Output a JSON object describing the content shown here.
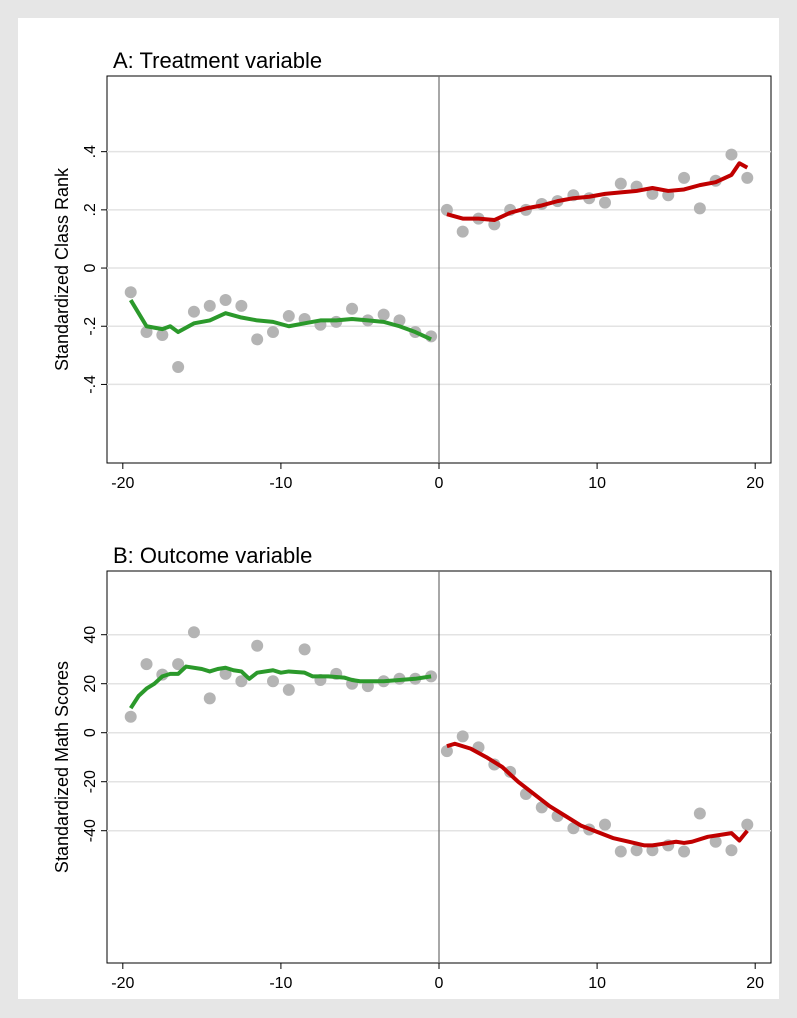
{
  "chart_data": [
    {
      "type": "scatter",
      "title": "A: Treatment variable",
      "ylabel": "Standardized Class Rank",
      "xlim": [
        -21,
        21
      ],
      "xticks": [
        -20,
        -10,
        0,
        10,
        20
      ],
      "ylim": [
        -0.67,
        0.66
      ],
      "yticks": [
        {
          "value": -0.4,
          "label": "-.4"
        },
        {
          "value": -0.2,
          "label": "-.2"
        },
        0,
        {
          "value": 0.2,
          "label": ".2"
        },
        {
          "value": 0.4,
          "label": ".4"
        }
      ],
      "grid": true,
      "xline": 0,
      "series": [
        {
          "type": "scatter",
          "color": "#b4b4b4",
          "x": [
            -19.5,
            -18.5,
            -17.5,
            -16.5,
            -15.5,
            -14.5,
            -13.5,
            -12.5,
            -11.5,
            -10.5,
            -9.5,
            -8.5,
            -7.5,
            -6.5,
            -5.5,
            -4.5,
            -3.5,
            -2.5,
            -1.5,
            -0.5,
            0.5,
            1.5,
            2.5,
            3.5,
            4.5,
            5.5,
            6.5,
            7.5,
            8.5,
            9.5,
            10.5,
            11.5,
            12.5,
            13.5,
            14.5,
            15.5,
            16.5,
            17.5,
            18.5,
            19.5
          ],
          "values": [
            -0.083,
            -0.22,
            -0.23,
            -0.34,
            -0.15,
            -0.13,
            -0.11,
            -0.13,
            -0.245,
            -0.22,
            -0.165,
            -0.175,
            -0.195,
            -0.185,
            -0.14,
            -0.18,
            -0.16,
            -0.18,
            -0.22,
            -0.235,
            0.2,
            0.125,
            0.17,
            0.15,
            0.2,
            0.2,
            0.22,
            0.23,
            0.25,
            0.24,
            0.225,
            0.29,
            0.28,
            0.255,
            0.25,
            0.31,
            0.205,
            0.3,
            0.39,
            0.31
          ]
        },
        {
          "type": "line",
          "color": "#2b992b",
          "x": [
            -19.5,
            -18.5,
            -17.5,
            -17,
            -16.5,
            -15.5,
            -14.5,
            -13.5,
            -12.5,
            -11.5,
            -10.5,
            -9.5,
            -8.5,
            -7.5,
            -6.5,
            -5.5,
            -4.5,
            -3.5,
            -2.5,
            -1.5,
            -0.5
          ],
          "values": [
            -0.11,
            -0.2,
            -0.21,
            -0.2,
            -0.22,
            -0.19,
            -0.18,
            -0.155,
            -0.17,
            -0.18,
            -0.185,
            -0.2,
            -0.19,
            -0.18,
            -0.18,
            -0.175,
            -0.18,
            -0.185,
            -0.2,
            -0.22,
            -0.245
          ]
        },
        {
          "type": "line",
          "color": "#c00000",
          "x": [
            0.5,
            1.5,
            2.5,
            3.5,
            4.5,
            5.5,
            6.5,
            7.5,
            8.5,
            9.5,
            10.5,
            11.5,
            12.5,
            13.5,
            14.5,
            15.5,
            16.5,
            17.5,
            18.5,
            19,
            19.5
          ],
          "values": [
            0.185,
            0.17,
            0.17,
            0.165,
            0.19,
            0.205,
            0.215,
            0.23,
            0.24,
            0.245,
            0.255,
            0.26,
            0.265,
            0.275,
            0.265,
            0.27,
            0.285,
            0.295,
            0.32,
            0.36,
            0.345
          ]
        }
      ]
    },
    {
      "type": "scatter",
      "title": "B: Outcome variable",
      "ylabel": "Standardized Math Scores",
      "xlim": [
        -21,
        21
      ],
      "xticks": [
        -20,
        -10,
        0,
        10,
        20
      ],
      "ylim": [
        -94,
        66
      ],
      "yticks": [
        -40,
        -20,
        0,
        20,
        40
      ],
      "grid": true,
      "xline": 0,
      "series": [
        {
          "type": "scatter",
          "color": "#b4b4b4",
          "x": [
            -19.5,
            -18.5,
            -17.5,
            -16.5,
            -15.5,
            -14.5,
            -13.5,
            -12.5,
            -11.5,
            -10.5,
            -9.5,
            -8.5,
            -7.5,
            -6.5,
            -5.5,
            -4.5,
            -3.5,
            -2.5,
            -1.5,
            -0.5,
            0.5,
            1.5,
            2.5,
            3.5,
            4.5,
            5.5,
            6.5,
            7.5,
            8.5,
            9.5,
            10.5,
            11.5,
            12.5,
            13.5,
            14.5,
            15.5,
            16.5,
            17.5,
            18.5,
            19.5
          ],
          "values": [
            6.5,
            28,
            23.7,
            28,
            41,
            14,
            24,
            21,
            35.5,
            21,
            17.5,
            34,
            21.5,
            24,
            20,
            19,
            21,
            22,
            22,
            23,
            -7.5,
            -1.5,
            -6,
            -13,
            -16,
            -25,
            -30.5,
            -34,
            -39,
            -39.5,
            -37.5,
            -48.5,
            -48,
            -48,
            -46,
            -48.5,
            -33,
            -44.5,
            -48,
            -37.5
          ]
        },
        {
          "type": "line",
          "color": "#2b992b",
          "x": [
            -19.5,
            -19,
            -18.5,
            -18,
            -17.5,
            -17,
            -16.5,
            -16,
            -15,
            -14.5,
            -14,
            -13.5,
            -13,
            -12.5,
            -12,
            -11.5,
            -10.5,
            -10,
            -9.5,
            -8.5,
            -8,
            -7,
            -6,
            -5.5,
            -5,
            -3.5,
            -2.5,
            -1.5,
            -0.5
          ],
          "values": [
            10,
            15,
            18,
            20,
            23,
            24,
            24,
            27,
            26,
            25,
            26,
            26.5,
            25.5,
            25,
            22,
            24.5,
            25.5,
            24.5,
            25,
            24.5,
            23,
            23,
            22.5,
            21.5,
            21,
            21,
            21.5,
            22,
            23
          ]
        },
        {
          "type": "line",
          "color": "#c00000",
          "x": [
            0.5,
            1,
            2,
            3,
            4,
            5,
            6,
            7,
            8,
            9,
            10,
            11,
            12,
            13,
            13.5,
            14,
            15,
            15.5,
            16,
            17,
            18,
            18.5,
            19,
            19.5
          ],
          "values": [
            -5.5,
            -4.5,
            -6.5,
            -10,
            -14,
            -20,
            -25,
            -30,
            -34,
            -38,
            -40.5,
            -43,
            -44.5,
            -46,
            -46,
            -45.5,
            -44.5,
            -45,
            -44.5,
            -42.5,
            -41.5,
            -41,
            -44,
            -40
          ]
        }
      ]
    }
  ]
}
